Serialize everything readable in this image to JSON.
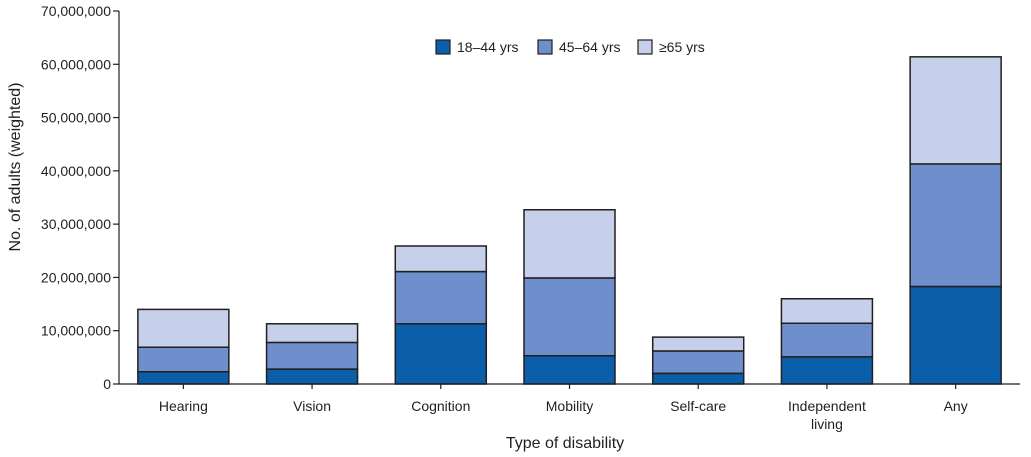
{
  "chart_data": {
    "type": "bar",
    "stacked": true,
    "title": "",
    "xlabel": "Type of disability",
    "ylabel": "No. of adults (weighted)",
    "ylim": [
      0,
      70000000
    ],
    "yticks": [
      0,
      10000000,
      20000000,
      30000000,
      40000000,
      50000000,
      60000000,
      70000000
    ],
    "ytick_labels": [
      "0",
      "10,000,000",
      "20,000,000",
      "30,000,000",
      "40,000,000",
      "50,000,000",
      "60,000,000",
      "70,000,000"
    ],
    "grid": false,
    "legend_position": "top-center",
    "categories": [
      {
        "line1": "Hearing",
        "line2": ""
      },
      {
        "line1": "Vision",
        "line2": ""
      },
      {
        "line1": "Cognition",
        "line2": ""
      },
      {
        "line1": "Mobility",
        "line2": ""
      },
      {
        "line1": "Self-care",
        "line2": ""
      },
      {
        "line1": "Independent",
        "line2": "living"
      },
      {
        "line1": "Any",
        "line2": ""
      }
    ],
    "series": [
      {
        "name": "18–44 yrs",
        "color": "#0b5ea8",
        "values": [
          2300000,
          2800000,
          11300000,
          5300000,
          2000000,
          5100000,
          18300000
        ]
      },
      {
        "name": "45–64 yrs",
        "color": "#6e8fcb",
        "values": [
          4600000,
          5000000,
          9800000,
          14600000,
          4200000,
          6300000,
          23000000
        ]
      },
      {
        "name": "≥65 yrs",
        "color": "#c6d0ea",
        "values": [
          7100000,
          3500000,
          4800000,
          12800000,
          2600000,
          4600000,
          20100000
        ]
      }
    ]
  }
}
